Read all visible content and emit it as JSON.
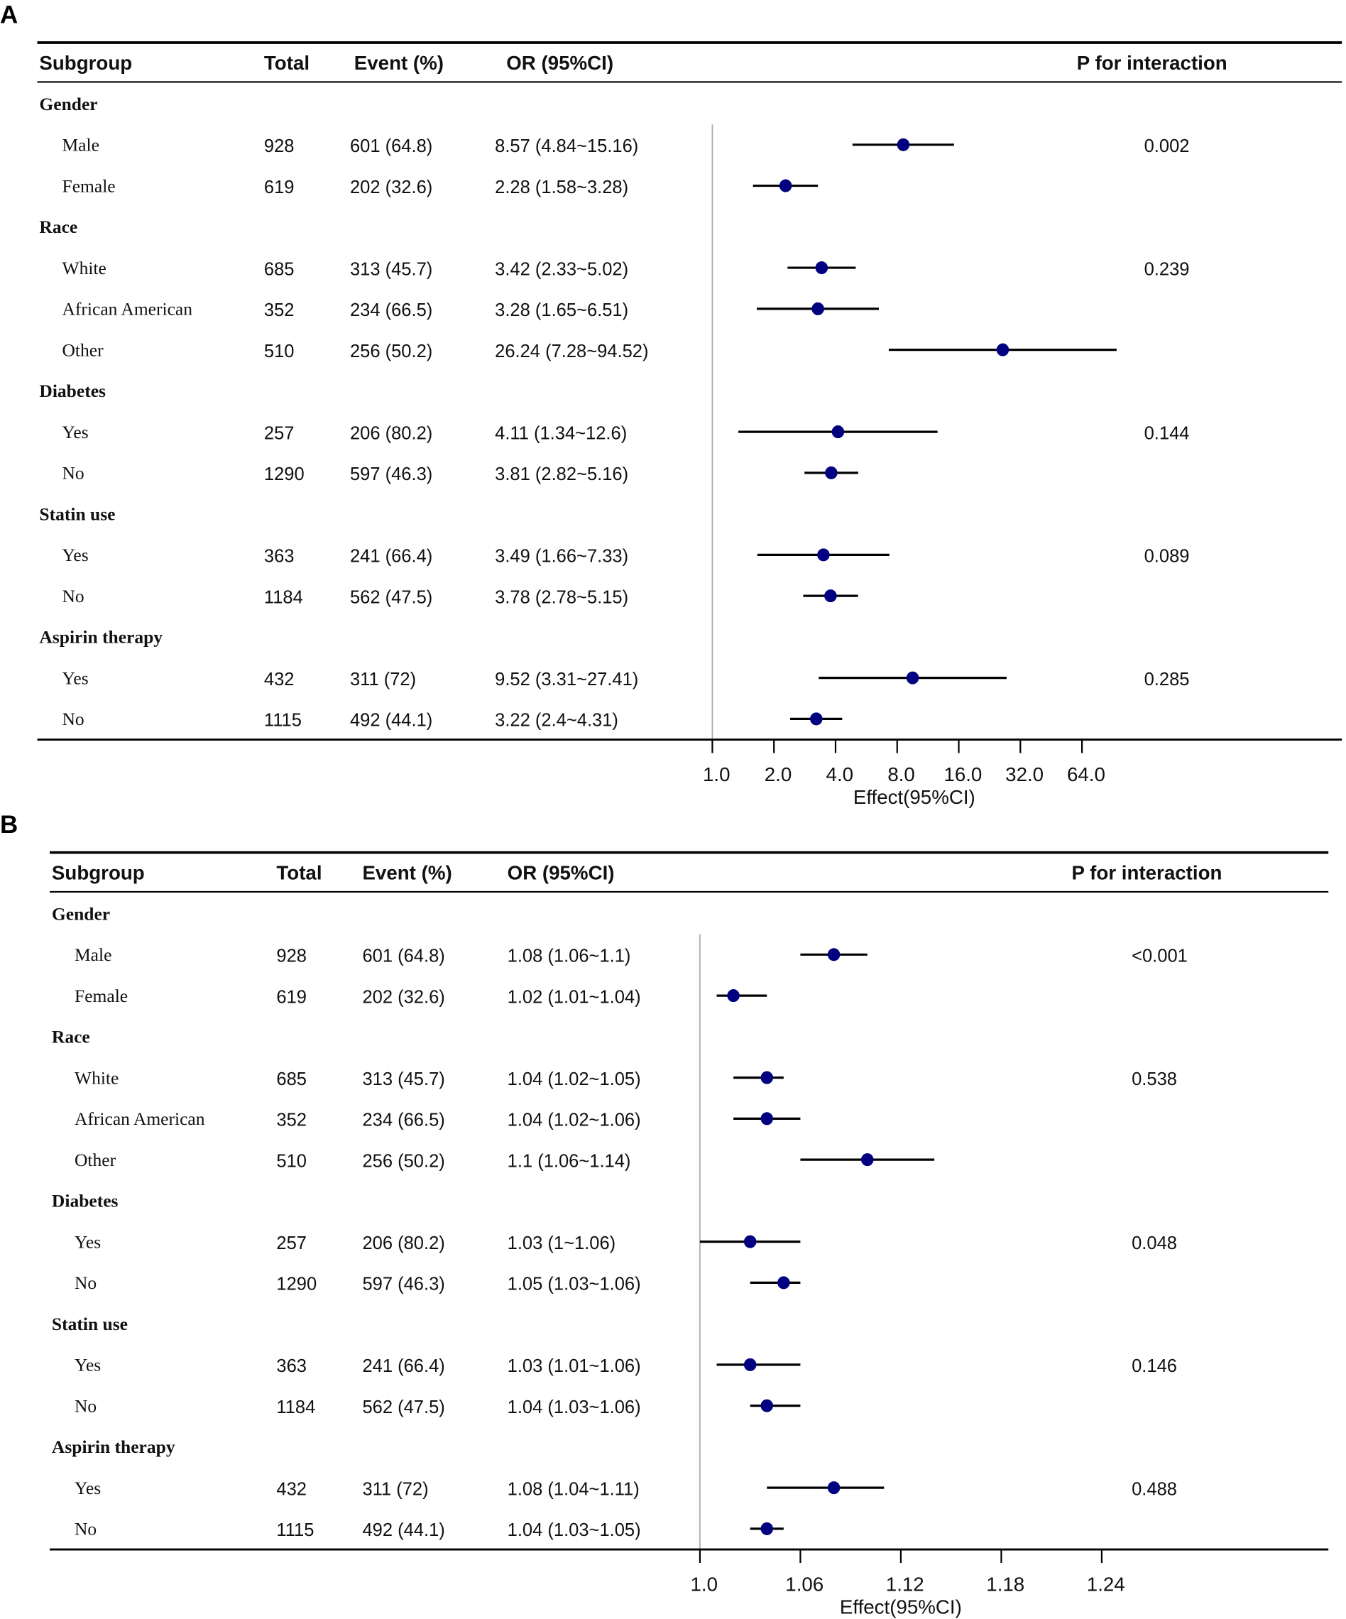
{
  "chart_data": [
    {
      "type": "forest",
      "panel_label": "A",
      "scale": "log2",
      "headers": {
        "subgroup": "Subgroup",
        "total": "Total",
        "event": "Event (%)",
        "or": "OR (95%CI)",
        "p": "P for interaction"
      },
      "xlabel": "Effect(95%CI)",
      "ticks": [
        {
          "value": 1,
          "label": "1.0"
        },
        {
          "value": 2,
          "label": "2.0"
        },
        {
          "value": 4,
          "label": "4.0"
        },
        {
          "value": 8,
          "label": "8.0"
        },
        {
          "value": 16,
          "label": "16.0"
        },
        {
          "value": 32,
          "label": "32.0"
        },
        {
          "value": 64,
          "label": "64.0"
        }
      ],
      "reference": 1,
      "point_color": "#000080",
      "rows": [
        {
          "group": "Gender"
        },
        {
          "label": "Male",
          "total": "928",
          "event": "601 (64.8)",
          "or_text": "8.57 (4.84~15.16)",
          "or": 8.57,
          "lo": 4.84,
          "hi": 15.16,
          "p": "0.002"
        },
        {
          "label": "Female",
          "total": "619",
          "event": "202 (32.6)",
          "or_text": "2.28 (1.58~3.28)",
          "or": 2.28,
          "lo": 1.58,
          "hi": 3.28,
          "p": ""
        },
        {
          "group": "Race"
        },
        {
          "label": "White",
          "total": "685",
          "event": "313 (45.7)",
          "or_text": "3.42 (2.33~5.02)",
          "or": 3.42,
          "lo": 2.33,
          "hi": 5.02,
          "p": "0.239"
        },
        {
          "label": "African American",
          "total": "352",
          "event": "234 (66.5)",
          "or_text": "3.28 (1.65~6.51)",
          "or": 3.28,
          "lo": 1.65,
          "hi": 6.51,
          "p": ""
        },
        {
          "label": "Other",
          "total": "510",
          "event": "256 (50.2)",
          "or_text": "26.24 (7.28~94.52)",
          "or": 26.24,
          "lo": 7.28,
          "hi": 94.52,
          "p": ""
        },
        {
          "group": "Diabetes"
        },
        {
          "label": "Yes",
          "total": "257",
          "event": "206 (80.2)",
          "or_text": "4.11 (1.34~12.6)",
          "or": 4.11,
          "lo": 1.34,
          "hi": 12.6,
          "p": "0.144"
        },
        {
          "label": "No",
          "total": "1290",
          "event": "597 (46.3)",
          "or_text": "3.81 (2.82~5.16)",
          "or": 3.81,
          "lo": 2.82,
          "hi": 5.16,
          "p": ""
        },
        {
          "group": "Statin use"
        },
        {
          "label": "Yes",
          "total": "363",
          "event": "241 (66.4)",
          "or_text": "3.49 (1.66~7.33)",
          "or": 3.49,
          "lo": 1.66,
          "hi": 7.33,
          "p": "0.089"
        },
        {
          "label": "No",
          "total": "1184",
          "event": "562 (47.5)",
          "or_text": "3.78 (2.78~5.15)",
          "or": 3.78,
          "lo": 2.78,
          "hi": 5.15,
          "p": ""
        },
        {
          "group": "Aspirin therapy"
        },
        {
          "label": "Yes",
          "total": "432",
          "event": "311 (72)",
          "or_text": "9.52 (3.31~27.41)",
          "or": 9.52,
          "lo": 3.31,
          "hi": 27.41,
          "p": "0.285"
        },
        {
          "label": "No",
          "total": "1115",
          "event": "492 (44.1)",
          "or_text": "3.22 (2.4~4.31)",
          "or": 3.22,
          "lo": 2.4,
          "hi": 4.31,
          "p": ""
        }
      ]
    },
    {
      "type": "forest",
      "panel_label": "B",
      "scale": "linear",
      "headers": {
        "subgroup": "Subgroup",
        "total": "Total",
        "event": "Event (%)",
        "or": "OR (95%CI)",
        "p": "P for interaction"
      },
      "xlabel": "Effect(95%CI)",
      "ticks": [
        {
          "value": 1.0,
          "label": "1.0"
        },
        {
          "value": 1.06,
          "label": "1.06"
        },
        {
          "value": 1.12,
          "label": "1.12"
        },
        {
          "value": 1.18,
          "label": "1.18"
        },
        {
          "value": 1.24,
          "label": "1.24"
        }
      ],
      "reference": 1,
      "point_color": "#000080",
      "rows": [
        {
          "group": "Gender"
        },
        {
          "label": "Male",
          "total": "928",
          "event": "601 (64.8)",
          "or_text": "1.08 (1.06~1.1)",
          "or": 1.08,
          "lo": 1.06,
          "hi": 1.1,
          "p": "<0.001"
        },
        {
          "label": "Female",
          "total": "619",
          "event": "202 (32.6)",
          "or_text": "1.02 (1.01~1.04)",
          "or": 1.02,
          "lo": 1.01,
          "hi": 1.04,
          "p": ""
        },
        {
          "group": "Race"
        },
        {
          "label": "White",
          "total": "685",
          "event": "313 (45.7)",
          "or_text": "1.04 (1.02~1.05)",
          "or": 1.04,
          "lo": 1.02,
          "hi": 1.05,
          "p": "0.538"
        },
        {
          "label": "African American",
          "total": "352",
          "event": "234 (66.5)",
          "or_text": "1.04 (1.02~1.06)",
          "or": 1.04,
          "lo": 1.02,
          "hi": 1.06,
          "p": ""
        },
        {
          "label": "Other",
          "total": "510",
          "event": "256 (50.2)",
          "or_text": "1.1 (1.06~1.14)",
          "or": 1.1,
          "lo": 1.06,
          "hi": 1.14,
          "p": ""
        },
        {
          "group": "Diabetes"
        },
        {
          "label": "Yes",
          "total": "257",
          "event": "206 (80.2)",
          "or_text": "1.03 (1~1.06)",
          "or": 1.03,
          "lo": 1.0,
          "hi": 1.06,
          "p": "0.048"
        },
        {
          "label": "No",
          "total": "1290",
          "event": "597 (46.3)",
          "or_text": "1.05 (1.03~1.06)",
          "or": 1.05,
          "lo": 1.03,
          "hi": 1.06,
          "p": ""
        },
        {
          "group": "Statin use"
        },
        {
          "label": "Yes",
          "total": "363",
          "event": "241 (66.4)",
          "or_text": "1.03 (1.01~1.06)",
          "or": 1.03,
          "lo": 1.01,
          "hi": 1.06,
          "p": "0.146"
        },
        {
          "label": "No",
          "total": "1184",
          "event": "562 (47.5)",
          "or_text": "1.04 (1.03~1.06)",
          "or": 1.04,
          "lo": 1.03,
          "hi": 1.06,
          "p": ""
        },
        {
          "group": "Aspirin therapy"
        },
        {
          "label": "Yes",
          "total": "432",
          "event": "311 (72)",
          "or_text": "1.08 (1.04~1.11)",
          "or": 1.08,
          "lo": 1.04,
          "hi": 1.11,
          "p": "0.488"
        },
        {
          "label": "No",
          "total": "1115",
          "event": "492 (44.1)",
          "or_text": "1.04 (1.03~1.05)",
          "or": 1.04,
          "lo": 1.03,
          "hi": 1.05,
          "p": ""
        }
      ]
    }
  ]
}
